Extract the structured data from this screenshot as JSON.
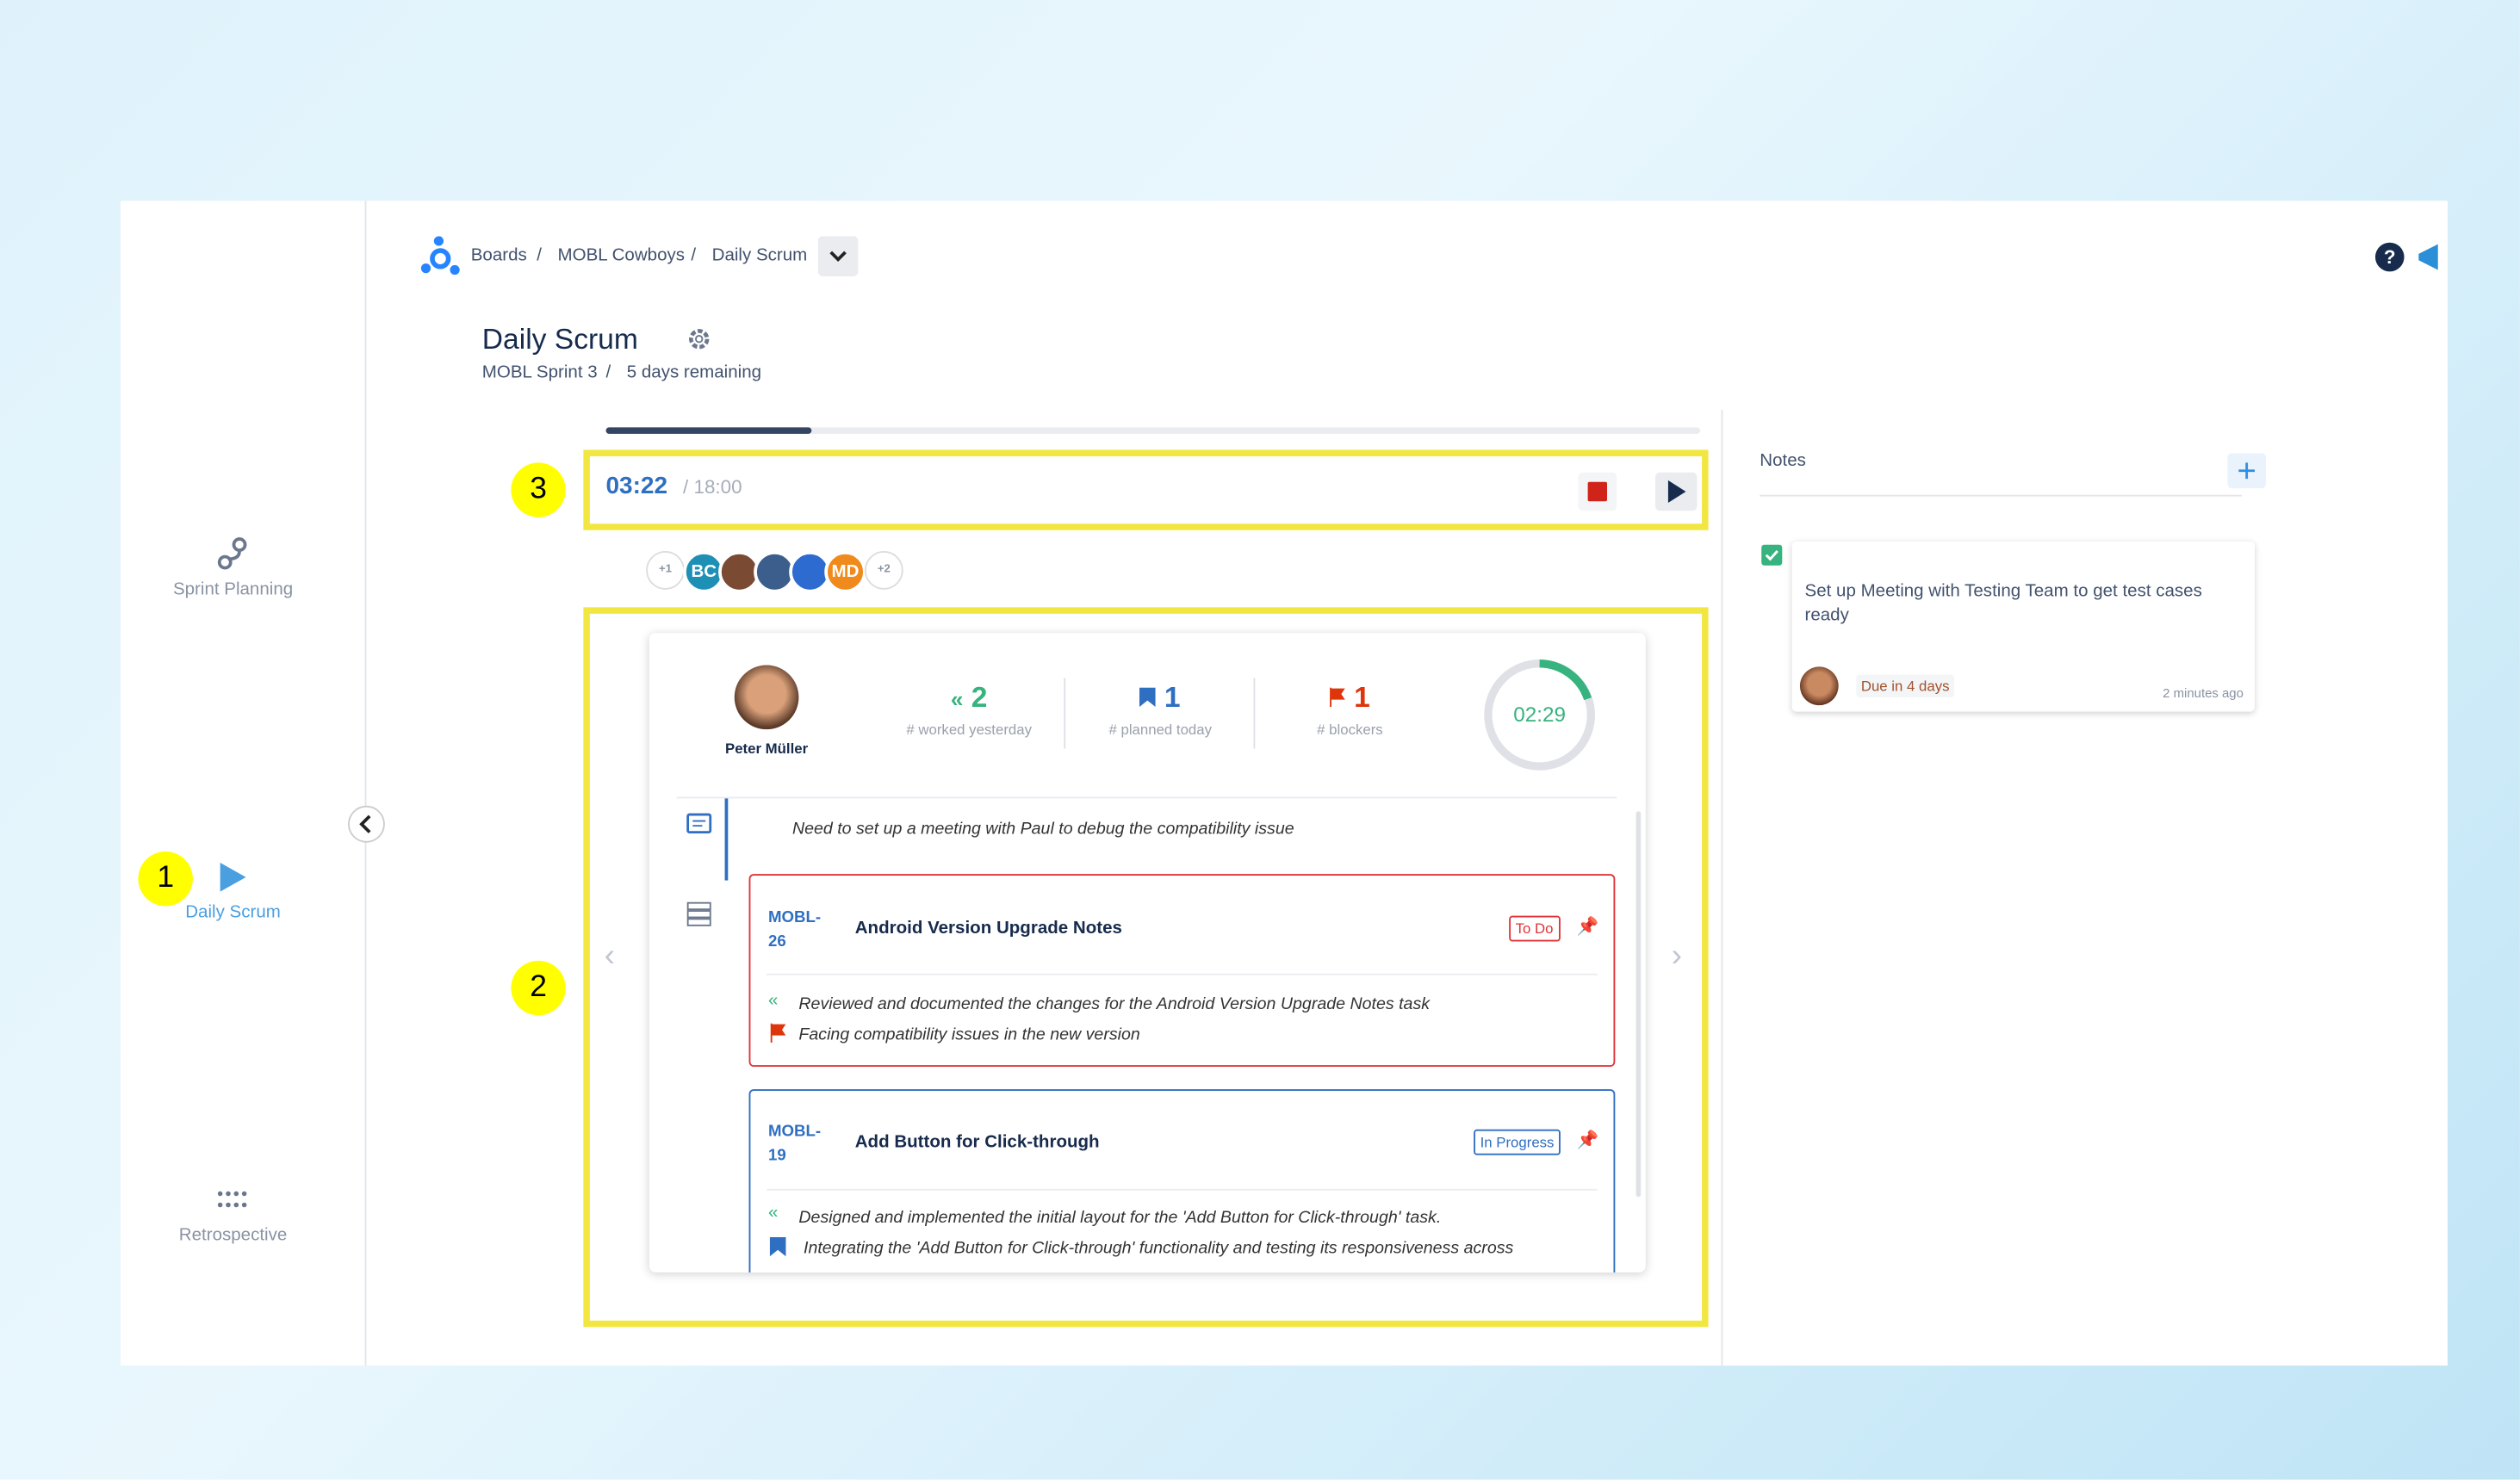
{
  "annotations": [
    "1",
    "2",
    "3"
  ],
  "sidebar": {
    "items": [
      "Sprint Planning",
      "Daily Scrum",
      "Retrospective"
    ]
  },
  "breadcrumb": {
    "items": [
      "Boards",
      "MOBL Cowboys",
      "Daily Scrum"
    ],
    "separator": "/"
  },
  "header": {
    "title": "Daily Scrum",
    "sprint": "MOBL Sprint 3",
    "separator": "/",
    "remaining": "5 days remaining"
  },
  "timer": {
    "elapsed": "03:22",
    "total": "/ 18:00"
  },
  "participants": [
    "+1",
    "BC",
    "MD",
    "+2"
  ],
  "member": {
    "name": "Peter Müller",
    "countdown": "02:29",
    "stats": [
      {
        "value": "2",
        "label": "# worked yesterday"
      },
      {
        "value": "1",
        "label": "# planned today"
      },
      {
        "value": "1",
        "label": "# blockers"
      }
    ]
  },
  "comment": "Need to set up a meeting with Paul to debug the compatibility issue",
  "tasks": [
    {
      "id": "MOBL-26",
      "title": "Android Version Upgrade Notes",
      "status": "To Do",
      "lines": [
        "Reviewed and documented the changes for the Android Version Upgrade Notes task",
        "Facing compatibility issues in the new version"
      ]
    },
    {
      "id": "MOBL-19",
      "title": "Add Button for Click-through",
      "status": "In Progress",
      "lines": [
        "Designed and implemented the initial layout for the 'Add Button for Click-through' task.",
        "Integrating the 'Add Button for Click-through' functionality and testing its responsiveness across"
      ]
    }
  ],
  "notes": {
    "title": "Notes",
    "items": [
      {
        "text": "Set up Meeting with Testing Team to get test cases ready",
        "due": "Due in 4 days",
        "time": "2 minutes ago"
      }
    ]
  }
}
